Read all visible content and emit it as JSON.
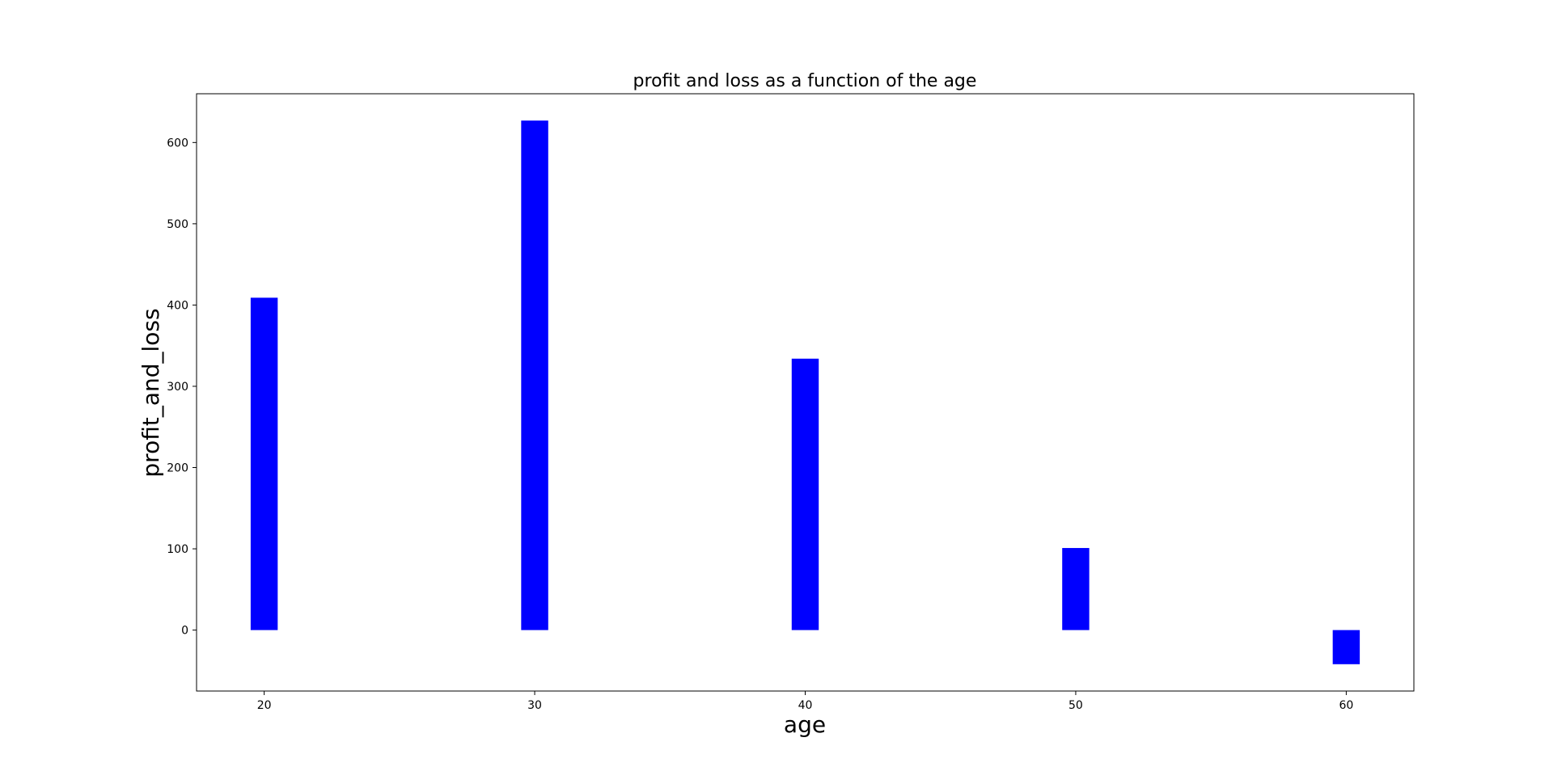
{
  "chart_data": {
    "type": "bar",
    "title": "profit and loss as a function of the age",
    "xlabel": "age",
    "ylabel": "profit_and_loss",
    "x": [
      20,
      30,
      40,
      50,
      60
    ],
    "values": [
      409,
      627,
      334,
      101,
      -42
    ],
    "bar_width": 1,
    "xlim": [
      17.5,
      62.5
    ],
    "ylim": [
      -75,
      660
    ],
    "xticks": [
      20,
      30,
      40,
      50,
      60
    ],
    "yticks": [
      0,
      100,
      200,
      300,
      400,
      500,
      600
    ],
    "color": "#0000ff",
    "grid": false,
    "legend": "none"
  }
}
